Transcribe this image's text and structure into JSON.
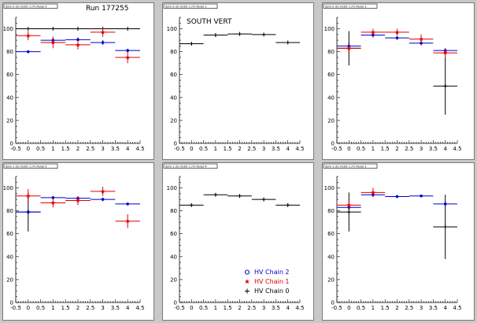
{
  "page": {
    "background": "#c8c8c8"
  },
  "series_styles": {
    "HV Chain 0": {
      "color": "#000000",
      "marker": "cross"
    },
    "HV Chain 1": {
      "color": "#e00000",
      "marker": "star"
    },
    "HV Chain 2": {
      "color": "#0000cc",
      "marker": "circle"
    }
  },
  "legend": {
    "entries": [
      {
        "name": "HV Chain 2",
        "color": "#0000cc",
        "marker": "circle"
      },
      {
        "name": "HV Chain 1",
        "color": "#e00000",
        "marker": "star"
      },
      {
        "name": "HV Chain 0",
        "color": "#000000",
        "marker": "cross"
      }
    ]
  },
  "chart_data": [
    {
      "type": "scatter",
      "tag": "dom 0 (0) Octnt 1 (Y) Panel 0",
      "title": "",
      "annotation": "Run 177255",
      "xlim": [
        -0.5,
        4.5
      ],
      "ylim": [
        0,
        110
      ],
      "xticks": [
        "-0.5",
        "0",
        "0.5",
        "1",
        "1.5",
        "2",
        "2.5",
        "3",
        "3.5",
        "4",
        "4.5"
      ],
      "yticks": [
        "0",
        "20",
        "40",
        "60",
        "80",
        "100"
      ],
      "series": [
        {
          "name": "HV Chain 0",
          "x": [
            0,
            1,
            2,
            3,
            4
          ],
          "y": [
            100,
            100,
            100,
            100,
            100
          ],
          "yerr": [
            0,
            0,
            0,
            0,
            0
          ]
        },
        {
          "name": "HV Chain 2",
          "x": [
            0,
            1,
            2,
            3,
            4
          ],
          "y": [
            80,
            90,
            90.5,
            88,
            81
          ],
          "yerr": [
            1,
            3,
            2,
            2,
            1.5
          ]
        },
        {
          "name": "HV Chain 1",
          "x": [
            0,
            1,
            2,
            3,
            4
          ],
          "y": [
            94,
            88,
            86,
            97,
            75
          ],
          "yerr": [
            4,
            5,
            4,
            4,
            5
          ]
        }
      ]
    },
    {
      "type": "scatter",
      "tag": "dom 0 (0) Octnt 1 (Y) Panel 1",
      "title": "SOUTH VERT",
      "annotation": "",
      "xlim": [
        -0.5,
        4.5
      ],
      "ylim": [
        0,
        110
      ],
      "xticks": [
        "-0.5",
        "0",
        "0.5",
        "1",
        "1.5",
        "2",
        "2.5",
        "3",
        "3.5",
        "4",
        "4.5"
      ],
      "yticks": [
        "0",
        "20",
        "40",
        "60",
        "80",
        "100"
      ],
      "series": [
        {
          "name": "HV Chain 0",
          "x": [
            0,
            1,
            2,
            3,
            4
          ],
          "y": [
            87,
            94.5,
            95.5,
            95,
            88
          ],
          "yerr": [
            1,
            1.5,
            1.5,
            1,
            1
          ]
        }
      ]
    },
    {
      "type": "scatter",
      "tag": "dom 0 (0) Octnt 1 (Y) Panel 2",
      "title": "",
      "annotation": "",
      "xlim": [
        -0.5,
        4.5
      ],
      "ylim": [
        0,
        110
      ],
      "xticks": [
        "-0.5",
        "0",
        "0.5",
        "1",
        "1.5",
        "2",
        "2.5",
        "3",
        "3.5",
        "4",
        "4.5"
      ],
      "yticks": [
        "0",
        "20",
        "40",
        "60",
        "80",
        "100"
      ],
      "series": [
        {
          "name": "HV Chain 0",
          "x": [
            0,
            4
          ],
          "y": [
            83,
            50
          ],
          "yerr": [
            15,
            25
          ]
        },
        {
          "name": "HV Chain 2",
          "x": [
            0,
            1,
            2,
            3,
            4
          ],
          "y": [
            85,
            94.5,
            92,
            87.5,
            81
          ],
          "yerr": [
            3,
            2,
            1.5,
            2,
            2
          ]
        },
        {
          "name": "HV Chain 1",
          "x": [
            0,
            1,
            2,
            3,
            4
          ],
          "y": [
            83,
            97,
            97,
            91,
            79
          ],
          "yerr": [
            4,
            3,
            3,
            4,
            4
          ]
        }
      ]
    },
    {
      "type": "scatter",
      "tag": "dom 1 (0) Octnt 1 (Y) Panel 0",
      "title": "",
      "annotation": "",
      "xlim": [
        -0.5,
        4.5
      ],
      "ylim": [
        0,
        110
      ],
      "xticks": [
        "-0.5",
        "0",
        "0.5",
        "1",
        "1.5",
        "2",
        "2.5",
        "3",
        "3.5",
        "4",
        "4.5"
      ],
      "yticks": [
        "0",
        "20",
        "40",
        "60",
        "80",
        "100"
      ],
      "series": [
        {
          "name": "HV Chain 0",
          "x": [
            0
          ],
          "y": [
            79
          ],
          "yerr": [
            17
          ]
        },
        {
          "name": "HV Chain 2",
          "x": [
            0,
            1,
            2,
            3,
            4
          ],
          "y": [
            79,
            91.5,
            91,
            90,
            86
          ],
          "yerr": [
            2,
            1.5,
            2,
            1.5,
            1
          ]
        },
        {
          "name": "HV Chain 1",
          "x": [
            0,
            1,
            2,
            3,
            4
          ],
          "y": [
            93,
            87,
            89,
            97,
            71
          ],
          "yerr": [
            6,
            4,
            4,
            4,
            6
          ]
        }
      ]
    },
    {
      "type": "scatter",
      "tag": "dom 1 (0) Octnt 1 (Y) Panel 4",
      "title": "",
      "annotation": "",
      "xlim": [
        -0.5,
        4.5
      ],
      "ylim": [
        0,
        110
      ],
      "xticks": [
        "-0.5",
        "0",
        "0.5",
        "1",
        "1.5",
        "2",
        "2.5",
        "3",
        "3.5",
        "4",
        "4.5"
      ],
      "yticks": [
        "0",
        "20",
        "40",
        "60",
        "80",
        "100"
      ],
      "series": [
        {
          "name": "HV Chain 0",
          "x": [
            0,
            1,
            2,
            3,
            4
          ],
          "y": [
            85,
            94,
            93,
            90,
            85
          ],
          "yerr": [
            1,
            1,
            1,
            1.5,
            1
          ]
        }
      ]
    },
    {
      "type": "scatter",
      "tag": "dom 1 (0) Octnt 1 (Y) Panel 2",
      "title": "",
      "annotation": "",
      "xlim": [
        -0.5,
        4.5
      ],
      "ylim": [
        0,
        110
      ],
      "xticks": [
        "-0.5",
        "0",
        "0.5",
        "1",
        "1.5",
        "2",
        "2.5",
        "3",
        "3.5",
        "4",
        "4.5"
      ],
      "yticks": [
        "0",
        "20",
        "40",
        "60",
        "80",
        "100"
      ],
      "series": [
        {
          "name": "HV Chain 0",
          "x": [
            0,
            4
          ],
          "y": [
            79,
            66
          ],
          "yerr": [
            17,
            28
          ]
        },
        {
          "name": "HV Chain 2",
          "x": [
            0,
            1,
            2,
            3,
            4
          ],
          "y": [
            83,
            94,
            92.5,
            93,
            86
          ],
          "yerr": [
            2,
            2,
            1,
            1,
            2
          ]
        },
        {
          "name": "HV Chain 1",
          "x": [
            0,
            1
          ],
          "y": [
            85,
            96
          ],
          "yerr": [
            4,
            4
          ]
        }
      ]
    }
  ]
}
